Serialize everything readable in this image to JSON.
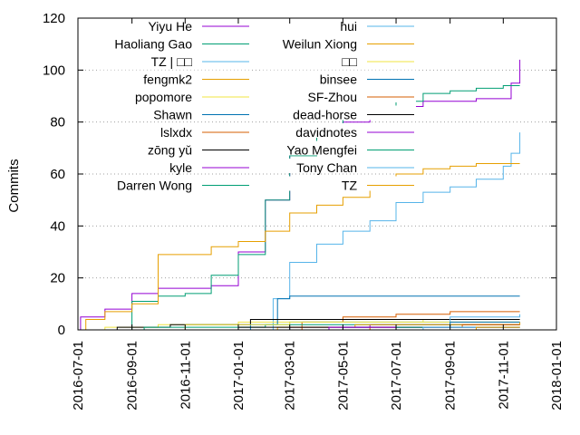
{
  "chart_data": {
    "type": "line",
    "style": "step",
    "ylabel": "Commits",
    "xlabel": "",
    "title": "",
    "xlim": [
      "2016-07-01",
      "2018-01-01"
    ],
    "ylim": [
      0,
      120
    ],
    "x_ticks": [
      "2016-07-01",
      "2016-09-01",
      "2016-11-01",
      "2017-01-01",
      "2017-03-01",
      "2017-05-01",
      "2017-07-01",
      "2017-09-01",
      "2017-11-01",
      "2018-01-01"
    ],
    "y_ticks": [
      0,
      20,
      40,
      60,
      80,
      100,
      120
    ],
    "grid": "horizontal dotted",
    "legend_placement": "top-left, two columns",
    "series": [
      {
        "name": "Yiyu He",
        "color": "#9400d3",
        "points": [
          [
            "2016-07-01",
            0
          ],
          [
            "2016-07-04",
            5
          ],
          [
            "2016-08-01",
            8
          ],
          [
            "2016-09-01",
            14
          ],
          [
            "2016-10-01",
            16
          ],
          [
            "2016-11-01",
            16
          ],
          [
            "2016-12-01",
            17
          ],
          [
            "2017-01-01",
            30
          ],
          [
            "2017-02-01",
            50
          ],
          [
            "2017-03-01",
            70
          ],
          [
            "2017-04-01",
            77
          ],
          [
            "2017-05-01",
            80
          ],
          [
            "2017-06-01",
            84
          ],
          [
            "2017-07-01",
            86
          ],
          [
            "2017-08-01",
            88
          ],
          [
            "2017-09-01",
            88
          ],
          [
            "2017-10-01",
            89
          ],
          [
            "2017-11-01",
            89
          ],
          [
            "2017-11-10",
            95
          ],
          [
            "2017-11-20",
            104
          ]
        ]
      },
      {
        "name": "Haoliang Gao",
        "color": "#009e73",
        "points": [
          [
            "2016-07-01",
            0
          ],
          [
            "2016-09-01",
            11
          ],
          [
            "2016-10-01",
            13
          ],
          [
            "2016-11-01",
            14
          ],
          [
            "2016-12-01",
            21
          ],
          [
            "2017-01-01",
            29
          ],
          [
            "2017-02-01",
            50
          ],
          [
            "2017-03-01",
            67
          ],
          [
            "2017-04-01",
            75
          ],
          [
            "2017-05-01",
            81
          ],
          [
            "2017-06-01",
            85
          ],
          [
            "2017-07-01",
            88
          ],
          [
            "2017-08-01",
            91
          ],
          [
            "2017-09-01",
            92
          ],
          [
            "2017-10-01",
            93
          ],
          [
            "2017-11-01",
            94
          ],
          [
            "2017-11-20",
            94
          ]
        ]
      },
      {
        "name": "TZ | □□",
        "color": "#56b4e9",
        "points": [
          [
            "2016-07-01",
            0
          ],
          [
            "2017-01-10",
            0
          ],
          [
            "2017-02-10",
            12
          ],
          [
            "2017-03-01",
            26
          ],
          [
            "2017-04-01",
            33
          ],
          [
            "2017-05-01",
            38
          ],
          [
            "2017-06-01",
            42
          ],
          [
            "2017-07-01",
            49
          ],
          [
            "2017-08-01",
            53
          ],
          [
            "2017-09-01",
            55
          ],
          [
            "2017-10-01",
            58
          ],
          [
            "2017-11-01",
            63
          ],
          [
            "2017-11-10",
            68
          ],
          [
            "2017-11-20",
            76
          ]
        ]
      },
      {
        "name": "fengmk2",
        "color": "#e69f00",
        "points": [
          [
            "2016-07-01",
            0
          ],
          [
            "2016-07-10",
            4
          ],
          [
            "2016-08-01",
            7
          ],
          [
            "2016-09-01",
            10
          ],
          [
            "2016-10-01",
            29
          ],
          [
            "2016-11-01",
            29
          ],
          [
            "2016-12-01",
            32
          ],
          [
            "2017-01-01",
            34
          ],
          [
            "2017-02-01",
            38
          ],
          [
            "2017-03-01",
            45
          ],
          [
            "2017-04-01",
            48
          ],
          [
            "2017-05-01",
            51
          ],
          [
            "2017-06-01",
            56
          ],
          [
            "2017-07-01",
            60
          ],
          [
            "2017-08-01",
            62
          ],
          [
            "2017-09-01",
            63
          ],
          [
            "2017-10-01",
            64
          ],
          [
            "2017-11-01",
            64
          ],
          [
            "2017-11-20",
            64
          ]
        ]
      },
      {
        "name": "popomore",
        "color": "#f0e442",
        "points": [
          [
            "2016-07-01",
            0
          ],
          [
            "2016-08-01",
            1
          ],
          [
            "2016-10-01",
            2
          ],
          [
            "2017-01-01",
            3
          ],
          [
            "2017-05-01",
            3
          ],
          [
            "2017-08-01",
            4
          ],
          [
            "2017-11-20",
            4
          ]
        ]
      },
      {
        "name": "Shawn",
        "color": "#0072b2",
        "points": [
          [
            "2016-07-01",
            0
          ],
          [
            "2017-01-15",
            2
          ],
          [
            "2017-02-15",
            12
          ],
          [
            "2017-03-01",
            13
          ],
          [
            "2017-11-20",
            13
          ]
        ]
      },
      {
        "name": "lslxdx",
        "color": "#d55e00",
        "points": [
          [
            "2016-07-01",
            0
          ],
          [
            "2017-03-15",
            3
          ],
          [
            "2017-05-01",
            5
          ],
          [
            "2017-07-01",
            6
          ],
          [
            "2017-09-01",
            7
          ],
          [
            "2017-11-20",
            7
          ]
        ]
      },
      {
        "name": "zōng yǔ",
        "color": "#000000",
        "points": [
          [
            "2016-07-01",
            0
          ],
          [
            "2016-08-15",
            1
          ],
          [
            "2016-10-15",
            2
          ],
          [
            "2017-01-15",
            4
          ],
          [
            "2017-04-01",
            4
          ],
          [
            "2017-11-20",
            4
          ]
        ]
      },
      {
        "name": "kyle",
        "color": "#9400d3",
        "points": [
          [
            "2016-07-01",
            0
          ],
          [
            "2017-03-01",
            1
          ],
          [
            "2017-06-01",
            2
          ],
          [
            "2017-11-20",
            2
          ]
        ]
      },
      {
        "name": "Darren Wong",
        "color": "#009e73",
        "points": [
          [
            "2016-07-01",
            0
          ],
          [
            "2016-09-15",
            1
          ],
          [
            "2017-02-01",
            2
          ],
          [
            "2017-11-20",
            2
          ]
        ]
      },
      {
        "name": "hui",
        "color": "#56b4e9",
        "points": [
          [
            "2016-07-01",
            0
          ],
          [
            "2017-03-01",
            3
          ],
          [
            "2017-09-01",
            5
          ],
          [
            "2017-11-20",
            6
          ]
        ]
      },
      {
        "name": "Weilun Xiong",
        "color": "#e69f00",
        "points": [
          [
            "2016-07-01",
            0
          ],
          [
            "2017-02-15",
            1
          ],
          [
            "2017-05-15",
            2
          ],
          [
            "2017-11-20",
            3
          ]
        ]
      },
      {
        "name": "□□",
        "color": "#f0e442",
        "points": [
          [
            "2016-07-01",
            0
          ],
          [
            "2016-11-01",
            2
          ],
          [
            "2017-03-01",
            3
          ],
          [
            "2017-11-20",
            3
          ]
        ]
      },
      {
        "name": "binsee",
        "color": "#0072b2",
        "points": [
          [
            "2016-07-01",
            0
          ],
          [
            "2017-05-01",
            1
          ],
          [
            "2017-09-01",
            3
          ],
          [
            "2017-11-20",
            3
          ]
        ]
      },
      {
        "name": "SF-Zhou",
        "color": "#d55e00",
        "points": [
          [
            "2016-07-01",
            0
          ],
          [
            "2017-06-01",
            1
          ],
          [
            "2017-09-15",
            2
          ],
          [
            "2017-11-20",
            2
          ]
        ]
      },
      {
        "name": "dead-horse",
        "color": "#000000",
        "points": [
          [
            "2016-07-01",
            0
          ],
          [
            "2017-01-01",
            1
          ],
          [
            "2017-11-20",
            1
          ]
        ]
      },
      {
        "name": "davidnotes",
        "color": "#9400d3",
        "points": [
          [
            "2016-07-01",
            0
          ],
          [
            "2017-04-15",
            1
          ],
          [
            "2017-11-20",
            1
          ]
        ]
      },
      {
        "name": "Yao Mengfei",
        "color": "#009e73",
        "points": [
          [
            "2016-07-01",
            0
          ],
          [
            "2017-07-01",
            1
          ],
          [
            "2017-11-20",
            1
          ]
        ]
      },
      {
        "name": "Tony Chan",
        "color": "#56b4e9",
        "points": [
          [
            "2016-07-01",
            0
          ],
          [
            "2017-08-01",
            1
          ],
          [
            "2017-11-20",
            1
          ]
        ]
      },
      {
        "name": "TZ",
        "color": "#e69f00",
        "points": [
          [
            "2016-07-01",
            0
          ],
          [
            "2017-10-01",
            1
          ],
          [
            "2017-11-20",
            1
          ]
        ]
      }
    ]
  }
}
